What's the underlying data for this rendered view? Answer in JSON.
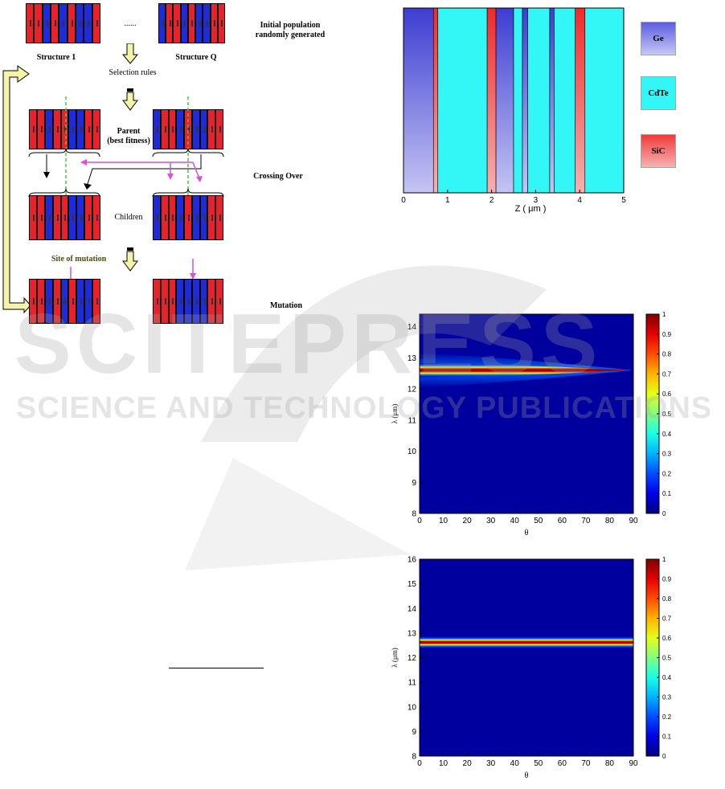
{
  "figure_ga": {
    "labels": {
      "initial_population": "Initial population\nrandomly generated",
      "structure_1": "Structure 1",
      "structure_q": "Structure Q",
      "ellipsis": "......",
      "selection_rules": "Selection rules",
      "parent": "Parent\n(best fitness)",
      "crossing_over": "Crossing Over",
      "children": "Children",
      "site_of_mutation": "Site of mutation",
      "mutation": "Mutation"
    },
    "colors": {
      "red": "#e8212b",
      "blue": "#1f2bd8",
      "arrow_fill": "#f6f4a8",
      "pink": "#d84fd8",
      "green_dash": "#3bd23b"
    },
    "rows": {
      "structure_1": [
        "r",
        "r",
        "b",
        "r",
        "b",
        "r",
        "b",
        "b",
        "r"
      ],
      "structure_q": [
        "b",
        "r",
        "r",
        "b",
        "r",
        "b",
        "b",
        "r",
        "r"
      ],
      "parent_left": [
        "r",
        "r",
        "b",
        "r",
        "r",
        "b",
        "b",
        "r",
        "r"
      ],
      "parent_right": [
        "b",
        "r",
        "r",
        "b",
        "r",
        "b",
        "b",
        "r",
        "r"
      ],
      "child_left": [
        "r",
        "r",
        "b",
        "r",
        "r",
        "b",
        "b",
        "r",
        "r"
      ],
      "child_right": [
        "b",
        "r",
        "r",
        "b",
        "r",
        "b",
        "b",
        "r",
        "r"
      ],
      "mut_left": [
        "r",
        "r",
        "b",
        "r",
        "b",
        "r",
        "b",
        "b",
        "r"
      ],
      "mut_right": [
        "r",
        "r",
        "r",
        "b",
        "b",
        "b",
        "b",
        "r",
        "r"
      ]
    }
  },
  "figure_structure": {
    "xlabel": "Z ( μm )",
    "x_ticks": [
      "0",
      "1",
      "2",
      "3",
      "4",
      "5"
    ],
    "legend": [
      {
        "name": "Ge",
        "color": "#8f8fe8"
      },
      {
        "name": "CdTe",
        "color": "#33f6f6"
      },
      {
        "name": "SiC",
        "color": "#f08080"
      }
    ],
    "layers": [
      {
        "material": "Ge",
        "z0": 0.0,
        "z1": 0.68
      },
      {
        "material": "SiC",
        "z0": 0.68,
        "z1": 0.78
      },
      {
        "material": "CdTe",
        "z0": 0.78,
        "z1": 1.9
      },
      {
        "material": "SiC",
        "z0": 1.9,
        "z1": 2.1
      },
      {
        "material": "Ge",
        "z0": 2.1,
        "z1": 2.5
      },
      {
        "material": "CdTe",
        "z0": 2.5,
        "z1": 2.7
      },
      {
        "material": "Ge",
        "z0": 2.7,
        "z1": 2.82
      },
      {
        "material": "CdTe",
        "z0": 2.82,
        "z1": 3.32
      },
      {
        "material": "Ge",
        "z0": 3.32,
        "z1": 3.42
      },
      {
        "material": "CdTe",
        "z0": 3.42,
        "z1": 3.9
      },
      {
        "material": "SiC",
        "z0": 3.9,
        "z1": 4.12
      },
      {
        "material": "CdTe",
        "z0": 4.12,
        "z1": 5.0
      }
    ]
  },
  "chart_data": [
    {
      "type": "heatmap",
      "xlabel": "θ",
      "ylabel": "λ (μm)",
      "xlim": [
        0,
        90
      ],
      "ylim": [
        8,
        14.4
      ],
      "x_ticks": [
        "0",
        "10",
        "20",
        "30",
        "40",
        "50",
        "60",
        "70",
        "80",
        "90"
      ],
      "y_ticks": [
        "8",
        "9",
        "10",
        "11",
        "12",
        "13",
        "14"
      ],
      "colorbar_ticks": [
        "0",
        "0.1",
        "0.2",
        "0.3",
        "0.4",
        "0.5",
        "0.6",
        "0.7",
        "0.8",
        "0.9",
        "1"
      ],
      "colorbar_range": [
        0,
        1
      ],
      "peak": {
        "lambda_center": 12.6,
        "theta_start": 0,
        "theta_end": 88,
        "max_value": 1
      },
      "grid": false
    },
    {
      "type": "heatmap",
      "xlabel": "θ",
      "ylabel": "λ (μm)",
      "xlim": [
        0,
        90
      ],
      "ylim": [
        8,
        16
      ],
      "x_ticks": [
        "0",
        "10",
        "20",
        "30",
        "40",
        "50",
        "60",
        "70",
        "80",
        "90"
      ],
      "y_ticks": [
        "8",
        "9",
        "10",
        "11",
        "12",
        "13",
        "14",
        "15",
        "16"
      ],
      "colorbar_ticks": [
        "0",
        "0.1",
        "0.2",
        "0.3",
        "0.4",
        "0.5",
        "0.6",
        "0.7",
        "0.8",
        "0.9",
        "1"
      ],
      "colorbar_range": [
        0,
        1
      ],
      "peak": {
        "lambda_center": 12.62,
        "theta_start": 0,
        "theta_end": 90,
        "max_value": 1
      },
      "grid": false
    }
  ],
  "watermark": {
    "big": "SCITEPRESS",
    "small": "SCIENCE AND TECHNOLOGY PUBLICATIONS"
  }
}
